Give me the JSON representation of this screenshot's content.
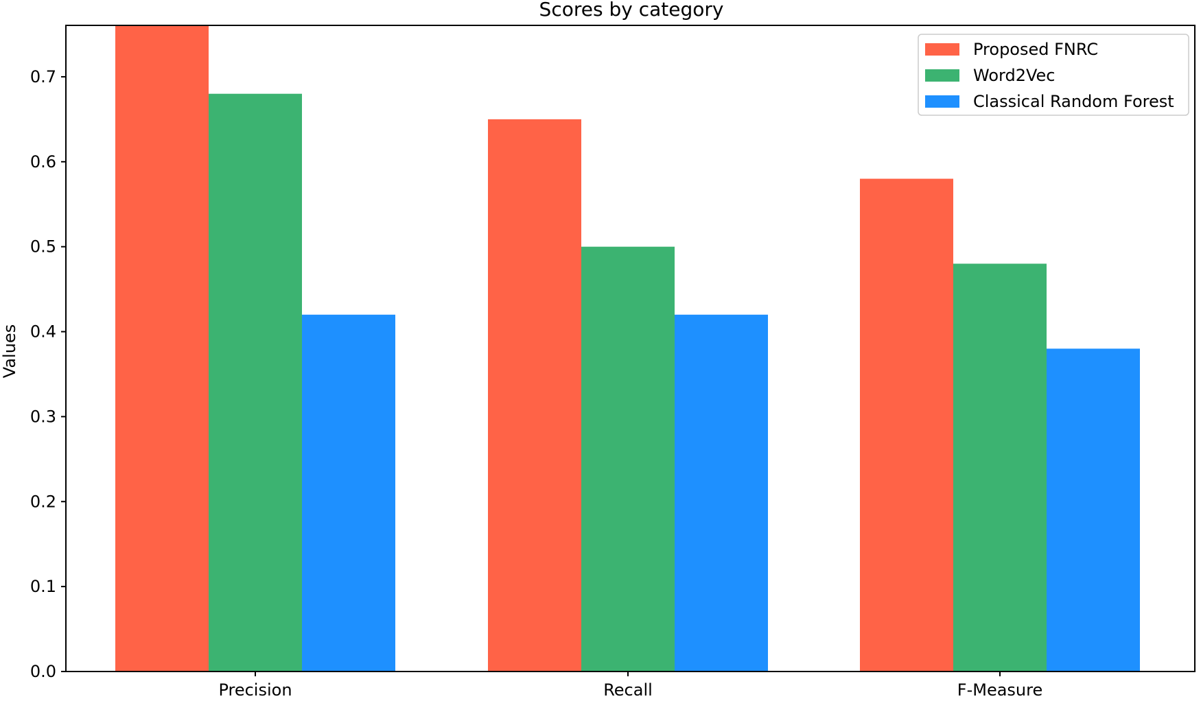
{
  "chart_data": {
    "type": "bar",
    "title": "Scores by category",
    "xlabel": "",
    "ylabel": "Values",
    "categories": [
      "Precision",
      "Recall",
      "F-Measure"
    ],
    "series": [
      {
        "name": "Proposed FNRC",
        "values": [
          0.76,
          0.65,
          0.58
        ],
        "color": "#ff6347"
      },
      {
        "name": "Word2Vec",
        "values": [
          0.68,
          0.5,
          0.48
        ],
        "color": "#3cb371"
      },
      {
        "name": "Classical Random Forest",
        "values": [
          0.42,
          0.42,
          0.38
        ],
        "color": "#1e90ff"
      }
    ],
    "ylim": [
      0,
      0.7605
    ],
    "yticks": [
      0.0,
      0.1,
      0.2,
      0.3,
      0.4,
      0.5,
      0.6,
      0.7
    ],
    "ytick_labels": [
      "0.0",
      "0.1",
      "0.2",
      "0.3",
      "0.4",
      "0.5",
      "0.6",
      "0.7"
    ],
    "grid": false,
    "legend_position": "top-right"
  }
}
